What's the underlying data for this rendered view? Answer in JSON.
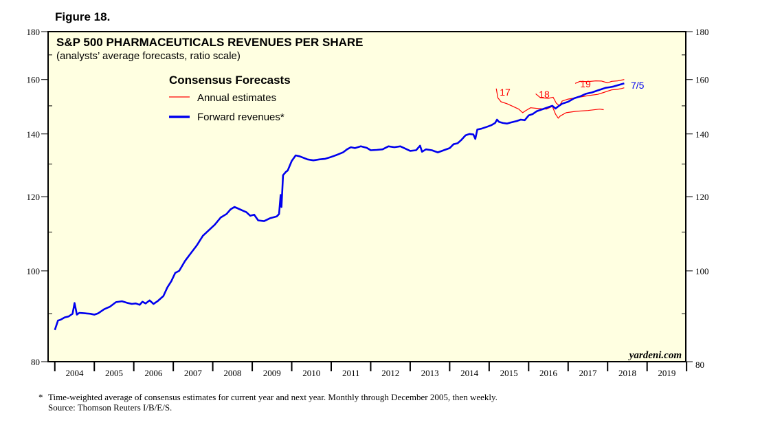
{
  "figure_label": "Figure 18.",
  "footnote": "Time-weighted average of consensus estimates for current year and next year. Monthly through December 2005, then weekly.",
  "footnote_marker": "*",
  "source": "Source: Thomson Reuters I/B/E/S.",
  "chart_data": {
    "type": "line",
    "title": "S&P 500 PHARMACEUTICALS REVENUES PER SHARE",
    "subtitle": "(analysts’ average forecasts, ratio scale)",
    "legend_title": "Consensus Forecasts",
    "legend_placement": "top-left",
    "yscale": "log",
    "ylim": [
      80,
      180
    ],
    "yticks": [
      80,
      100,
      120,
      140,
      160,
      180
    ],
    "xlim": [
      2003.83,
      2019.98
    ],
    "xtick_labels": [
      "2004",
      "2005",
      "2006",
      "2007",
      "2008",
      "2009",
      "2010",
      "2011",
      "2012",
      "2013",
      "2014",
      "2015",
      "2016",
      "2017",
      "2018",
      "2019"
    ],
    "watermark": "yardeni.com",
    "grid": false,
    "series": [
      {
        "name": "Annual estimates",
        "color": "#ff0000",
        "segments": [
          {
            "label": "17",
            "points": [
              [
                2015.18,
                156.5
              ],
              [
                2015.22,
                153.0
              ],
              [
                2015.3,
                151.5
              ],
              [
                2015.45,
                150.8
              ],
              [
                2015.6,
                149.8
              ],
              [
                2015.75,
                148.8
              ],
              [
                2015.85,
                147.5
              ],
              [
                2015.92,
                148.2
              ],
              [
                2016.05,
                149.3
              ],
              [
                2016.25,
                149.0
              ],
              [
                2016.45,
                148.8
              ],
              [
                2016.6,
                149.8
              ],
              [
                2016.68,
                147.0
              ],
              [
                2016.75,
                145.5
              ],
              [
                2016.8,
                146.3
              ],
              [
                2016.95,
                147.5
              ],
              [
                2017.2,
                148.0
              ],
              [
                2017.5,
                148.3
              ],
              [
                2017.8,
                148.8
              ],
              [
                2017.9,
                148.6
              ]
            ]
          },
          {
            "label": "18",
            "points": [
              [
                2016.18,
                154.5
              ],
              [
                2016.3,
                153.0
              ],
              [
                2016.5,
                152.8
              ],
              [
                2016.62,
                153.2
              ],
              [
                2016.7,
                151.0
              ],
              [
                2016.78,
                150.0
              ],
              [
                2016.85,
                151.8
              ],
              [
                2017.0,
                152.5
              ],
              [
                2017.2,
                153.0
              ],
              [
                2017.5,
                153.8
              ],
              [
                2017.75,
                154.3
              ],
              [
                2017.9,
                155.0
              ],
              [
                2018.0,
                155.5
              ],
              [
                2018.1,
                156.0
              ],
              [
                2018.25,
                156.2
              ],
              [
                2018.35,
                156.5
              ],
              [
                2018.42,
                156.8
              ]
            ]
          },
          {
            "label": "19",
            "points": [
              [
                2017.18,
                158.5
              ],
              [
                2017.3,
                159.3
              ],
              [
                2017.5,
                159.2
              ],
              [
                2017.7,
                159.5
              ],
              [
                2017.85,
                159.4
              ],
              [
                2018.0,
                158.7
              ],
              [
                2018.1,
                159.3
              ],
              [
                2018.25,
                159.5
              ],
              [
                2018.35,
                159.8
              ],
              [
                2018.42,
                160.0
              ]
            ]
          }
        ]
      },
      {
        "name": "Forward revenues*",
        "color": "#0000ee",
        "end_label": "7/5",
        "points": [
          [
            2004.0,
            86.5
          ],
          [
            2004.08,
            88.5
          ],
          [
            2004.15,
            88.7
          ],
          [
            2004.25,
            89.2
          ],
          [
            2004.35,
            89.4
          ],
          [
            2004.45,
            90.0
          ],
          [
            2004.5,
            92.4
          ],
          [
            2004.56,
            89.8
          ],
          [
            2004.62,
            90.2
          ],
          [
            2004.75,
            90.1
          ],
          [
            2004.9,
            90.0
          ],
          [
            2005.0,
            89.8
          ],
          [
            2005.1,
            90.1
          ],
          [
            2005.25,
            91.0
          ],
          [
            2005.4,
            91.6
          ],
          [
            2005.55,
            92.6
          ],
          [
            2005.7,
            92.8
          ],
          [
            2005.85,
            92.4
          ],
          [
            2005.95,
            92.2
          ],
          [
            2006.05,
            92.3
          ],
          [
            2006.15,
            92.0
          ],
          [
            2006.22,
            92.7
          ],
          [
            2006.3,
            92.3
          ],
          [
            2006.4,
            93.0
          ],
          [
            2006.5,
            92.2
          ],
          [
            2006.6,
            92.8
          ],
          [
            2006.75,
            94.0
          ],
          [
            2006.85,
            96.0
          ],
          [
            2006.95,
            97.5
          ],
          [
            2007.05,
            99.5
          ],
          [
            2007.15,
            100.0
          ],
          [
            2007.3,
            102.5
          ],
          [
            2007.45,
            104.5
          ],
          [
            2007.6,
            106.5
          ],
          [
            2007.75,
            109.0
          ],
          [
            2007.9,
            110.5
          ],
          [
            2008.05,
            112.0
          ],
          [
            2008.2,
            114.0
          ],
          [
            2008.35,
            115.0
          ],
          [
            2008.45,
            116.3
          ],
          [
            2008.55,
            117.0
          ],
          [
            2008.65,
            116.5
          ],
          [
            2008.75,
            116.0
          ],
          [
            2008.85,
            115.5
          ],
          [
            2008.95,
            114.5
          ],
          [
            2009.05,
            114.8
          ],
          [
            2009.15,
            113.2
          ],
          [
            2009.3,
            113.0
          ],
          [
            2009.45,
            113.8
          ],
          [
            2009.62,
            114.3
          ],
          [
            2009.68,
            115.0
          ],
          [
            2009.72,
            120.5
          ],
          [
            2009.74,
            117.0
          ],
          [
            2009.78,
            126.5
          ],
          [
            2009.85,
            127.5
          ],
          [
            2009.9,
            128.0
          ],
          [
            2010.0,
            131.0
          ],
          [
            2010.1,
            132.8
          ],
          [
            2010.2,
            132.5
          ],
          [
            2010.3,
            132.0
          ],
          [
            2010.4,
            131.5
          ],
          [
            2010.55,
            131.2
          ],
          [
            2010.7,
            131.5
          ],
          [
            2010.85,
            131.7
          ],
          [
            2011.0,
            132.3
          ],
          [
            2011.15,
            133.0
          ],
          [
            2011.3,
            133.8
          ],
          [
            2011.4,
            134.8
          ],
          [
            2011.5,
            135.5
          ],
          [
            2011.6,
            135.2
          ],
          [
            2011.75,
            135.8
          ],
          [
            2011.9,
            135.3
          ],
          [
            2012.0,
            134.5
          ],
          [
            2012.15,
            134.6
          ],
          [
            2012.3,
            134.8
          ],
          [
            2012.45,
            135.8
          ],
          [
            2012.6,
            135.5
          ],
          [
            2012.75,
            135.8
          ],
          [
            2012.85,
            135.2
          ],
          [
            2013.0,
            134.3
          ],
          [
            2013.15,
            134.5
          ],
          [
            2013.25,
            136.0
          ],
          [
            2013.3,
            134.0
          ],
          [
            2013.4,
            134.8
          ],
          [
            2013.55,
            134.5
          ],
          [
            2013.7,
            133.8
          ],
          [
            2013.85,
            134.5
          ],
          [
            2014.0,
            135.2
          ],
          [
            2014.1,
            136.5
          ],
          [
            2014.2,
            136.8
          ],
          [
            2014.3,
            138.0
          ],
          [
            2014.4,
            139.5
          ],
          [
            2014.5,
            140.0
          ],
          [
            2014.6,
            139.8
          ],
          [
            2014.65,
            138.3
          ],
          [
            2014.7,
            141.5
          ],
          [
            2014.8,
            141.8
          ],
          [
            2014.95,
            142.5
          ],
          [
            2015.05,
            143.0
          ],
          [
            2015.15,
            143.8
          ],
          [
            2015.2,
            145.0
          ],
          [
            2015.25,
            144.2
          ],
          [
            2015.35,
            143.8
          ],
          [
            2015.45,
            143.6
          ],
          [
            2015.55,
            144.0
          ],
          [
            2015.7,
            144.5
          ],
          [
            2015.8,
            145.0
          ],
          [
            2015.9,
            144.8
          ],
          [
            2016.0,
            146.5
          ],
          [
            2016.1,
            147.0
          ],
          [
            2016.2,
            148.0
          ],
          [
            2016.3,
            148.5
          ],
          [
            2016.4,
            149.0
          ],
          [
            2016.5,
            149.5
          ],
          [
            2016.6,
            150.0
          ],
          [
            2016.68,
            149.0
          ],
          [
            2016.75,
            149.8
          ],
          [
            2016.85,
            150.8
          ],
          [
            2017.0,
            151.5
          ],
          [
            2017.15,
            152.8
          ],
          [
            2017.3,
            153.5
          ],
          [
            2017.45,
            154.5
          ],
          [
            2017.6,
            155.0
          ],
          [
            2017.75,
            155.8
          ],
          [
            2017.85,
            156.3
          ],
          [
            2017.95,
            156.8
          ],
          [
            2018.05,
            157.0
          ],
          [
            2018.15,
            157.3
          ],
          [
            2018.3,
            158.0
          ],
          [
            2018.42,
            158.5
          ]
        ]
      }
    ],
    "annotations": [
      "17",
      "18",
      "19",
      "7/5"
    ]
  }
}
